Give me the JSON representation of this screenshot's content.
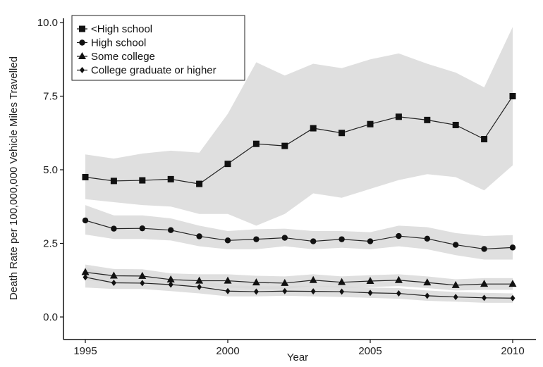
{
  "chart_data": {
    "type": "line",
    "xlabel": "Year",
    "ylabel": "Death Rate per 100,000,000 Vehicle Miles Travelled",
    "xlim": [
      1994.2,
      2010.8
    ],
    "ylim": [
      -0.7,
      10.4
    ],
    "xticks": [
      "1995",
      "2000",
      "2005",
      "2010"
    ],
    "xtick_values": [
      1995,
      2000,
      2005,
      2010
    ],
    "yticks": [
      "0.0",
      "2.5",
      "5.0",
      "7.5",
      "10.0"
    ],
    "ytick_values": [
      0,
      2.5,
      5,
      7.5,
      10
    ],
    "legend_position": "top-left",
    "band_color": "#d9d9d9",
    "line_color": "#222222",
    "x": [
      1995,
      1996,
      1997,
      1998,
      1999,
      2000,
      2001,
      2002,
      2003,
      2004,
      2005,
      2006,
      2007,
      2008,
      2009,
      2010
    ],
    "series": [
      {
        "name": "<High school",
        "marker": "square",
        "values": [
          4.75,
          4.62,
          4.64,
          4.68,
          4.52,
          5.2,
          5.88,
          5.81,
          6.41,
          6.25,
          6.55,
          6.8,
          6.69,
          6.52,
          6.04,
          7.5
        ],
        "lower": [
          4.0,
          3.9,
          3.8,
          3.75,
          3.5,
          3.5,
          3.1,
          3.5,
          4.2,
          4.05,
          4.35,
          4.65,
          4.85,
          4.75,
          4.3,
          5.15
        ],
        "upper": [
          5.52,
          5.38,
          5.55,
          5.65,
          5.58,
          6.9,
          8.65,
          8.2,
          8.6,
          8.45,
          8.75,
          8.95,
          8.6,
          8.3,
          7.8,
          9.85
        ]
      },
      {
        "name": "High school",
        "marker": "circle",
        "values": [
          3.28,
          3.0,
          3.01,
          2.95,
          2.74,
          2.6,
          2.64,
          2.69,
          2.57,
          2.64,
          2.57,
          2.75,
          2.66,
          2.45,
          2.31,
          2.36
        ],
        "lower": [
          2.8,
          2.65,
          2.65,
          2.6,
          2.4,
          2.3,
          2.3,
          2.4,
          2.3,
          2.35,
          2.3,
          2.4,
          2.3,
          2.1,
          1.95,
          1.95
        ],
        "upper": [
          3.8,
          3.45,
          3.45,
          3.35,
          3.1,
          2.92,
          2.98,
          3.0,
          2.92,
          2.92,
          2.88,
          3.1,
          3.05,
          2.85,
          2.75,
          2.78
        ]
      },
      {
        "name": "Some college",
        "marker": "triangle",
        "values": [
          1.52,
          1.4,
          1.39,
          1.27,
          1.23,
          1.23,
          1.17,
          1.15,
          1.25,
          1.18,
          1.22,
          1.25,
          1.17,
          1.08,
          1.12,
          1.12
        ],
        "lower": [
          1.25,
          1.15,
          1.15,
          1.05,
          1.02,
          1.0,
          0.95,
          0.95,
          1.05,
          0.98,
          1.02,
          1.05,
          0.98,
          0.9,
          0.92,
          0.92
        ],
        "upper": [
          1.78,
          1.63,
          1.62,
          1.48,
          1.45,
          1.45,
          1.4,
          1.38,
          1.45,
          1.38,
          1.42,
          1.45,
          1.38,
          1.28,
          1.32,
          1.32
        ]
      },
      {
        "name": "College graduate or higher",
        "marker": "diamond",
        "values": [
          1.35,
          1.16,
          1.15,
          1.1,
          1.02,
          0.88,
          0.86,
          0.88,
          0.87,
          0.86,
          0.82,
          0.8,
          0.72,
          0.68,
          0.65,
          0.64
        ],
        "lower": [
          1.0,
          0.95,
          0.95,
          0.88,
          0.8,
          0.7,
          0.7,
          0.72,
          0.7,
          0.68,
          0.65,
          0.62,
          0.55,
          0.52,
          0.48,
          0.48
        ],
        "upper": [
          1.7,
          1.4,
          1.38,
          1.3,
          1.24,
          1.08,
          1.04,
          1.05,
          1.06,
          1.05,
          1.0,
          0.98,
          0.9,
          0.85,
          0.82,
          0.8
        ]
      }
    ]
  }
}
